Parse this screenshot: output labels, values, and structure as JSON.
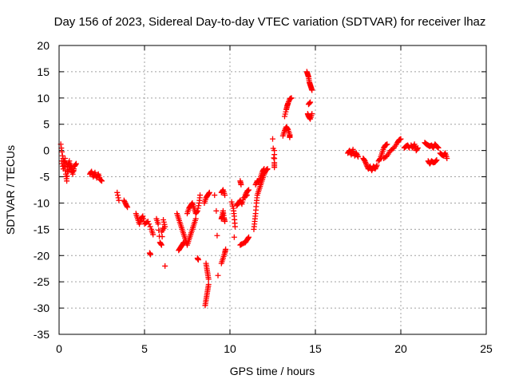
{
  "chart_data": {
    "type": "scatter",
    "title": "Day 156 of 2023, Sidereal Day-to-day VTEC variation (SDTVAR) for receiver lhaz",
    "xlabel": "GPS time / hours",
    "ylabel": "SDTVAR / TECUs",
    "xlim": [
      0,
      25
    ],
    "ylim": [
      -35,
      20
    ],
    "xticks": [
      0,
      5,
      10,
      15,
      20,
      25
    ],
    "yticks": [
      -35,
      -30,
      -25,
      -20,
      -15,
      -10,
      -5,
      0,
      5,
      10,
      15,
      20
    ],
    "grid": true,
    "marker": "+",
    "color": "#ff0000",
    "series": [
      {
        "name": "SDTVAR",
        "segments": [
          [
            [
              0.1,
              1.2
            ],
            [
              0.2,
              -1.0
            ],
            [
              0.3,
              -2.5
            ],
            [
              0.4,
              -4.5
            ],
            [
              0.45,
              -5.8
            ],
            [
              0.5,
              -3.0
            ],
            [
              0.6,
              -2.0
            ],
            [
              0.7,
              -3.5
            ],
            [
              0.8,
              -4.5
            ],
            [
              0.9,
              -3.0
            ],
            [
              1.0,
              -2.5
            ]
          ],
          [
            [
              0.15,
              -2.0
            ],
            [
              0.25,
              -3.5
            ],
            [
              0.35,
              -1.5
            ],
            [
              0.55,
              -4.0
            ],
            [
              0.65,
              -2.8
            ],
            [
              0.85,
              -3.8
            ]
          ],
          [
            [
              1.8,
              -4.5
            ],
            [
              1.9,
              -4.0
            ],
            [
              2.0,
              -5.0
            ],
            [
              2.1,
              -4.2
            ],
            [
              2.2,
              -5.2
            ],
            [
              2.3,
              -4.5
            ],
            [
              2.4,
              -5.5
            ],
            [
              2.5,
              -5.8
            ]
          ],
          [
            [
              3.4,
              -8.0
            ],
            [
              3.5,
              -9.5
            ]
          ],
          [
            [
              3.8,
              -9.5
            ],
            [
              3.9,
              -10.2
            ],
            [
              4.0,
              -10.8
            ]
          ],
          [
            [
              4.5,
              -12.0
            ],
            [
              4.6,
              -13.0
            ],
            [
              4.7,
              -14.0
            ],
            [
              4.8,
              -13.0
            ],
            [
              4.9,
              -12.5
            ],
            [
              5.0,
              -14.0
            ],
            [
              5.2,
              -13.5
            ],
            [
              5.4,
              -15.0
            ],
            [
              5.5,
              -16.0
            ]
          ],
          [
            [
              5.3,
              -19.5
            ],
            [
              5.35,
              -19.8
            ]
          ],
          [
            [
              5.7,
              -13.0
            ],
            [
              5.8,
              -14.0
            ],
            [
              5.9,
              -17.5
            ],
            [
              6.0,
              -18.0
            ],
            [
              6.1,
              -13.2
            ],
            [
              6.2,
              -14.5
            ],
            [
              6.0,
              -15.5
            ]
          ],
          [
            [
              6.2,
              -22.0
            ]
          ],
          [
            [
              6.9,
              -12.0
            ],
            [
              7.0,
              -13.0
            ],
            [
              7.1,
              -14.0
            ],
            [
              7.2,
              -15.0
            ],
            [
              7.3,
              -16.0
            ],
            [
              7.4,
              -17.0
            ],
            [
              7.5,
              -18.0
            ],
            [
              7.6,
              -17.0
            ],
            [
              7.7,
              -16.0
            ],
            [
              7.8,
              -15.0
            ],
            [
              7.9,
              -14.0
            ],
            [
              8.0,
              -13.0
            ]
          ],
          [
            [
              7.0,
              -19.0
            ],
            [
              7.1,
              -18.5
            ],
            [
              7.2,
              -18.0
            ],
            [
              7.3,
              -17.5
            ]
          ],
          [
            [
              7.5,
              -12.0
            ],
            [
              7.6,
              -11.0
            ],
            [
              7.7,
              -10.5
            ],
            [
              7.8,
              -10.0
            ],
            [
              7.9,
              -11.0
            ],
            [
              8.0,
              -12.0
            ],
            [
              8.1,
              -11.5
            ],
            [
              8.2,
              -10.0
            ],
            [
              8.25,
              -8.5
            ]
          ],
          [
            [
              8.1,
              -20.5
            ],
            [
              8.15,
              -20.8
            ]
          ],
          [
            [
              8.5,
              -10.0
            ],
            [
              8.6,
              -9.0
            ],
            [
              8.7,
              -8.5
            ],
            [
              8.8,
              -8.0
            ]
          ],
          [
            [
              8.55,
              -29.5
            ],
            [
              8.6,
              -28.5
            ],
            [
              8.65,
              -27.5
            ],
            [
              8.7,
              -26.5
            ],
            [
              8.75,
              -25.5
            ]
          ],
          [
            [
              8.6,
              -21.5
            ],
            [
              8.65,
              -22.5
            ],
            [
              8.7,
              -23.5
            ],
            [
              8.75,
              -24.5
            ]
          ],
          [
            [
              9.1,
              -8.5
            ]
          ],
          [
            [
              9.2,
              -11.5
            ]
          ],
          [
            [
              9.25,
              -16.2
            ]
          ],
          [
            [
              9.3,
              -23.8
            ]
          ],
          [
            [
              9.5,
              -13.0
            ],
            [
              9.55,
              -12.5
            ],
            [
              9.6,
              -11.5
            ],
            [
              9.65,
              -12.8
            ],
            [
              9.7,
              -13.5
            ]
          ],
          [
            [
              9.5,
              -21.5
            ],
            [
              9.6,
              -20.5
            ],
            [
              9.7,
              -19.5
            ],
            [
              9.75,
              -18.8
            ]
          ],
          [
            [
              9.5,
              -8.0
            ],
            [
              9.6,
              -7.5
            ],
            [
              9.7,
              -8.5
            ]
          ],
          [
            [
              10.1,
              -9.8
            ],
            [
              10.2,
              -11.0
            ],
            [
              10.25,
              -12.5
            ],
            [
              10.3,
              -14.5
            ]
          ],
          [
            [
              10.25,
              -16.5
            ]
          ],
          [
            [
              10.4,
              -10.5
            ],
            [
              10.5,
              -10.0
            ],
            [
              10.6,
              -9.5
            ],
            [
              10.7,
              -10.2
            ],
            [
              10.8,
              -9.0
            ],
            [
              11.0,
              -8.5
            ]
          ],
          [
            [
              10.6,
              -5.8
            ],
            [
              10.65,
              -6.5
            ]
          ],
          [
            [
              10.9,
              -8.5
            ],
            [
              11.0,
              -7.8
            ],
            [
              11.1,
              -7.5
            ]
          ],
          [
            [
              10.6,
              -18.0
            ],
            [
              10.7,
              -17.8
            ],
            [
              10.9,
              -17.5
            ],
            [
              11.0,
              -17.0
            ],
            [
              11.1,
              -16.5
            ]
          ],
          [
            [
              11.4,
              -15.0
            ],
            [
              11.45,
              -13.5
            ],
            [
              11.5,
              -12.0
            ],
            [
              11.55,
              -10.0
            ],
            [
              11.6,
              -8.5
            ],
            [
              11.7,
              -7.5
            ],
            [
              11.8,
              -6.5
            ],
            [
              11.9,
              -5.5
            ],
            [
              12.0,
              -4.5
            ],
            [
              12.1,
              -3.8
            ],
            [
              12.2,
              -3.5
            ]
          ],
          [
            [
              11.5,
              -6.5
            ],
            [
              11.6,
              -5.8
            ],
            [
              11.7,
              -6.0
            ],
            [
              11.8,
              -5.0
            ],
            [
              11.9,
              -4.0
            ],
            [
              12.0,
              -3.5
            ]
          ],
          [
            [
              12.6,
              0.0
            ],
            [
              12.6,
              -2.3
            ],
            [
              12.6,
              -3.2
            ],
            [
              12.5,
              2.2
            ]
          ],
          [
            [
              13.1,
              2.8
            ],
            [
              13.2,
              3.8
            ],
            [
              13.3,
              4.5
            ],
            [
              13.4,
              4.0
            ],
            [
              13.5,
              3.0
            ],
            [
              13.5,
              2.5
            ]
          ],
          [
            [
              13.2,
              6.5
            ],
            [
              13.3,
              7.8
            ],
            [
              13.35,
              8.5
            ],
            [
              13.4,
              9.0
            ],
            [
              13.5,
              9.8
            ],
            [
              13.6,
              10.0
            ]
          ],
          [
            [
              14.5,
              15.0
            ],
            [
              14.55,
              14.5
            ],
            [
              14.6,
              14.0
            ],
            [
              14.65,
              13.0
            ],
            [
              14.7,
              12.5
            ],
            [
              14.75,
              12.0
            ],
            [
              14.8,
              11.5
            ]
          ],
          [
            [
              14.6,
              8.8
            ],
            [
              14.7,
              9.2
            ]
          ],
          [
            [
              14.55,
              7.0
            ],
            [
              14.6,
              6.5
            ],
            [
              14.7,
              6.0
            ],
            [
              14.8,
              7.0
            ]
          ],
          [
            [
              16.9,
              -0.5
            ],
            [
              17.0,
              0.0
            ],
            [
              17.1,
              -0.8
            ],
            [
              17.2,
              0.2
            ],
            [
              17.3,
              -1.0
            ],
            [
              17.4,
              -0.5
            ],
            [
              17.5,
              -1.2
            ]
          ],
          [
            [
              17.8,
              -1.5
            ],
            [
              17.9,
              -2.0
            ],
            [
              18.0,
              -2.8
            ],
            [
              18.1,
              -3.5
            ],
            [
              18.2,
              -3.0
            ],
            [
              18.3,
              -3.8
            ],
            [
              18.4,
              -3.0
            ],
            [
              18.5,
              -3.5
            ],
            [
              18.6,
              -2.8
            ]
          ],
          [
            [
              18.7,
              -2.0
            ],
            [
              18.8,
              -1.5
            ],
            [
              18.9,
              -0.5
            ],
            [
              19.0,
              0.5
            ],
            [
              19.1,
              1.0
            ],
            [
              19.2,
              1.2
            ]
          ],
          [
            [
              19.0,
              -1.5
            ],
            [
              19.2,
              -1.0
            ],
            [
              19.4,
              0.0
            ],
            [
              19.6,
              0.5
            ],
            [
              19.8,
              1.5
            ],
            [
              19.9,
              2.0
            ],
            [
              20.0,
              2.2
            ]
          ],
          [
            [
              20.2,
              0.5
            ],
            [
              20.3,
              0.8
            ],
            [
              20.4,
              1.0
            ],
            [
              20.5,
              0.5
            ]
          ],
          [
            [
              20.6,
              1.0
            ],
            [
              20.7,
              0.5
            ],
            [
              20.8,
              1.2
            ],
            [
              20.9,
              0.0
            ],
            [
              21.0,
              0.5
            ]
          ],
          [
            [
              21.4,
              1.5
            ],
            [
              21.5,
              1.2
            ],
            [
              21.6,
              1.0
            ],
            [
              21.7,
              0.8
            ],
            [
              21.8,
              1.0
            ],
            [
              21.9,
              0.5
            ],
            [
              22.0,
              1.2
            ],
            [
              22.1,
              0.8
            ],
            [
              22.2,
              0.5
            ]
          ],
          [
            [
              21.6,
              -2.0
            ],
            [
              21.7,
              -2.5
            ],
            [
              21.8,
              -2.0
            ],
            [
              21.9,
              -2.3
            ],
            [
              22.0,
              -2.2
            ],
            [
              22.1,
              -1.8
            ]
          ],
          [
            [
              22.3,
              -0.5
            ],
            [
              22.4,
              -0.8
            ],
            [
              22.5,
              -1.0
            ],
            [
              22.6,
              -0.5
            ],
            [
              22.7,
              -1.5
            ]
          ]
        ]
      }
    ]
  }
}
